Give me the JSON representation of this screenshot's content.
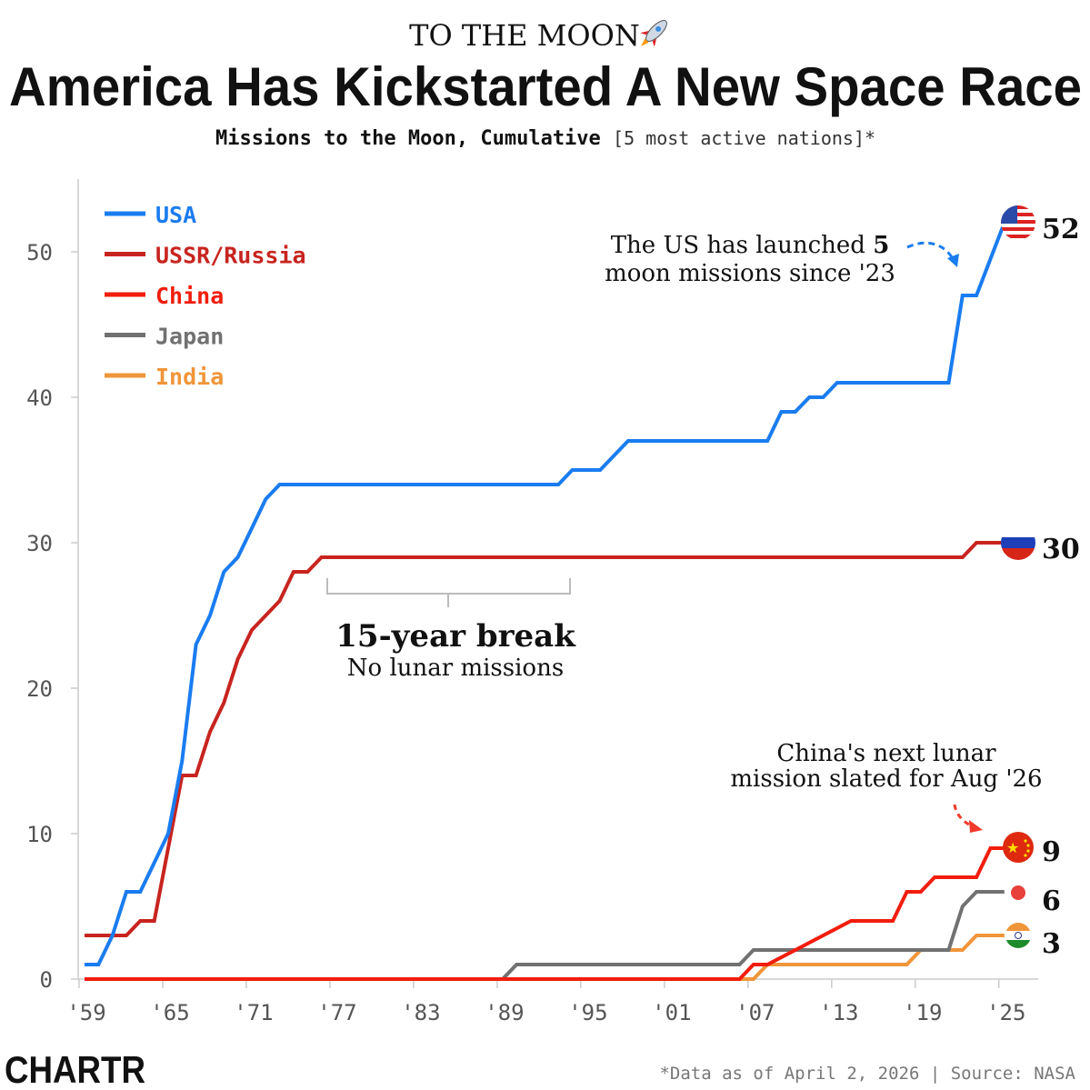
{
  "header": {
    "kicker": "TO THE MOON",
    "kicker_icon": "rocket-icon",
    "title": "America Has Kickstarted A New Space Race",
    "subtitle_bold": "Missions to the Moon, Cumulative",
    "subtitle_note": "[5 most active nations]*"
  },
  "chart_data": {
    "type": "line",
    "title": "America Has Kickstarted A New Space Race",
    "subtitle": "Missions to the Moon, Cumulative [5 most active nations]*",
    "xlabel": "",
    "ylabel": "",
    "xlim": [
      1959,
      2025
    ],
    "ylim": [
      0,
      55
    ],
    "x_ticks": [
      1959,
      1965,
      1971,
      1977,
      1983,
      1989,
      1995,
      2001,
      2007,
      2013,
      2019,
      2025
    ],
    "x_tick_labels": [
      "'59",
      "'65",
      "'71",
      "'77",
      "'83",
      "'89",
      "'95",
      "'01",
      "'07",
      "'13",
      "'19",
      "'25"
    ],
    "y_ticks": [
      0,
      10,
      20,
      30,
      40,
      50
    ],
    "y_tick_labels": [
      "0",
      "10",
      "20",
      "30",
      "40",
      "50"
    ],
    "grid": false,
    "legend_position": "top-left",
    "series": [
      {
        "name": "USA",
        "color": "#1a7cf0",
        "end_label": "52",
        "flag": "usa-flag-icon",
        "points": [
          [
            1959,
            1
          ],
          [
            1960,
            1
          ],
          [
            1961,
            3
          ],
          [
            1962,
            6
          ],
          [
            1963,
            6
          ],
          [
            1964,
            8
          ],
          [
            1965,
            10
          ],
          [
            1966,
            15
          ],
          [
            1967,
            23
          ],
          [
            1968,
            25
          ],
          [
            1969,
            28
          ],
          [
            1970,
            29
          ],
          [
            1971,
            31
          ],
          [
            1972,
            33
          ],
          [
            1973,
            34
          ],
          [
            1993,
            34
          ],
          [
            1994,
            35
          ],
          [
            1996,
            35
          ],
          [
            1998,
            37
          ],
          [
            2008,
            37
          ],
          [
            2009,
            39
          ],
          [
            2010,
            39
          ],
          [
            2011,
            40
          ],
          [
            2012,
            40
          ],
          [
            2013,
            41
          ],
          [
            2021,
            41
          ],
          [
            2022,
            47
          ],
          [
            2023,
            47
          ],
          [
            2025,
            52
          ]
        ]
      },
      {
        "name": "USSR/Russia",
        "color": "#c8241f",
        "end_label": "30",
        "flag": "russia-flag-icon",
        "points": [
          [
            1959,
            3
          ],
          [
            1962,
            3
          ],
          [
            1963,
            4
          ],
          [
            1964,
            4
          ],
          [
            1966,
            14
          ],
          [
            1967,
            14
          ],
          [
            1968,
            17
          ],
          [
            1969,
            19
          ],
          [
            1970,
            22
          ],
          [
            1971,
            24
          ],
          [
            1973,
            26
          ],
          [
            1974,
            28
          ],
          [
            1975,
            28
          ],
          [
            1976,
            29
          ],
          [
            2022,
            29
          ],
          [
            2023,
            30
          ],
          [
            2025,
            30
          ]
        ]
      },
      {
        "name": "China",
        "color": "#f21d0d",
        "end_label": "9",
        "flag": "china-flag-icon",
        "points": [
          [
            1959,
            0
          ],
          [
            2006,
            0
          ],
          [
            2007,
            1
          ],
          [
            2008,
            1
          ],
          [
            2014,
            4
          ],
          [
            2017,
            4
          ],
          [
            2018,
            6
          ],
          [
            2019,
            6
          ],
          [
            2020,
            7
          ],
          [
            2023,
            7
          ],
          [
            2024,
            9
          ],
          [
            2025,
            9
          ]
        ]
      },
      {
        "name": "Japan",
        "color": "#717171",
        "end_label": "6",
        "flag": "japan-flag-icon",
        "points": [
          [
            1959,
            0
          ],
          [
            1989,
            0
          ],
          [
            1990,
            1
          ],
          [
            2006,
            1
          ],
          [
            2007,
            2
          ],
          [
            2021,
            2
          ],
          [
            2022,
            5
          ],
          [
            2023,
            6
          ],
          [
            2025,
            6
          ]
        ]
      },
      {
        "name": "India",
        "color": "#f0953a",
        "end_label": "3",
        "flag": "india-flag-icon",
        "points": [
          [
            1989,
            0
          ],
          [
            2007,
            0
          ],
          [
            2008,
            1
          ],
          [
            2018,
            1
          ],
          [
            2019,
            2
          ],
          [
            2022,
            2
          ],
          [
            2023,
            3
          ],
          [
            2025,
            3
          ]
        ]
      }
    ],
    "annotations": {
      "us": {
        "line1_pre": "The US has launched ",
        "line1_bold": "5",
        "line2": "moon missions since '23"
      },
      "break": {
        "title": "15-year break",
        "subtitle": "No lunar missions"
      },
      "china": {
        "line1": "China's next lunar",
        "line2": "mission slated for Aug '26"
      }
    }
  },
  "footer": {
    "logo": "CHARTR",
    "source": "*Data as of April 2, 2026 | Source: NASA"
  }
}
